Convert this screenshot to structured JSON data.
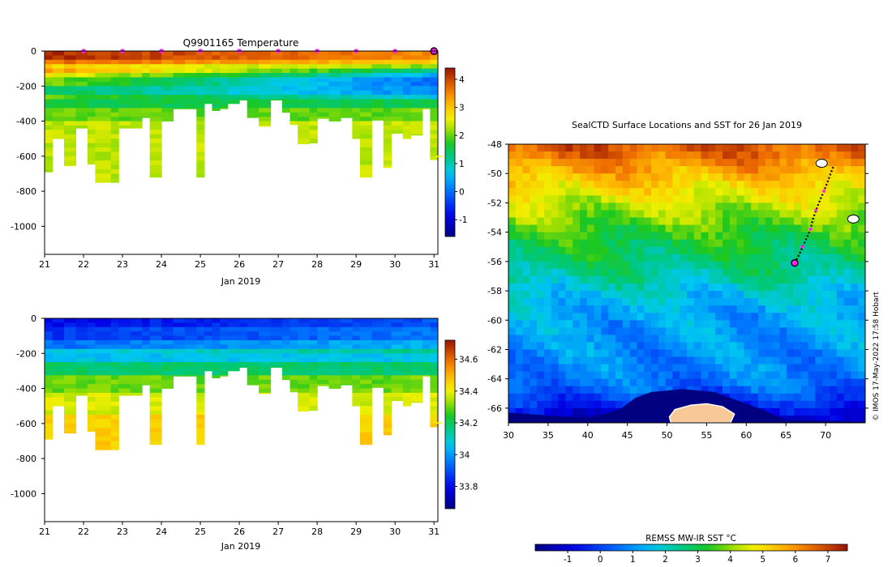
{
  "chart_data": [
    {
      "id": "temperature_section",
      "type": "heatmap",
      "title": "Q9901165  Temperature",
      "xlabel": "Jan 2019",
      "ylabel": "",
      "xlim": [
        21,
        31.1
      ],
      "ylim": [
        -1160,
        0
      ],
      "x_ticks": [
        21,
        22,
        23,
        24,
        25,
        26,
        27,
        28,
        29,
        30,
        31
      ],
      "x_tick_labels": [
        "21",
        "22",
        "23",
        "24",
        "25",
        "26",
        "27",
        "28",
        "29",
        "30",
        "31"
      ],
      "y_ticks": [
        0,
        -200,
        -400,
        -600,
        -800,
        -1000
      ],
      "y_tick_labels": [
        "0",
        "-200",
        "-400",
        "-600",
        "-800",
        "-1000"
      ],
      "colorbar": {
        "min": -1.6,
        "max": 4.4,
        "ticks": [
          -1,
          0,
          1,
          2,
          3,
          4
        ],
        "tick_labels": [
          "-1",
          "0",
          "1",
          "2",
          "3",
          "4"
        ],
        "colormap": "jet",
        "marker_value": 1.25
      },
      "surface_markers_day": [
        22,
        23,
        24,
        25,
        26,
        27,
        28,
        29,
        30
      ],
      "marker_color": "#ff22ff",
      "last_profile_day": 31,
      "profiles": [
        {
          "day": 21.0,
          "max_depth": 690
        },
        {
          "day": 21.2,
          "max_depth": 500
        },
        {
          "day": 21.5,
          "max_depth": 655
        },
        {
          "day": 21.8,
          "max_depth": 440
        },
        {
          "day": 22.1,
          "max_depth": 645
        },
        {
          "day": 22.3,
          "max_depth": 750
        },
        {
          "day": 22.7,
          "max_depth": 750
        },
        {
          "day": 22.9,
          "max_depth": 440
        },
        {
          "day": 23.2,
          "max_depth": 440
        },
        {
          "day": 23.5,
          "max_depth": 380
        },
        {
          "day": 23.7,
          "max_depth": 720
        },
        {
          "day": 24.0,
          "max_depth": 400
        },
        {
          "day": 24.3,
          "max_depth": 330
        },
        {
          "day": 24.6,
          "max_depth": 330
        },
        {
          "day": 24.9,
          "max_depth": 720
        },
        {
          "day": 25.1,
          "max_depth": 300
        },
        {
          "day": 25.3,
          "max_depth": 340
        },
        {
          "day": 25.5,
          "max_depth": 330
        },
        {
          "day": 25.7,
          "max_depth": 300
        },
        {
          "day": 26.0,
          "max_depth": 280
        },
        {
          "day": 26.2,
          "max_depth": 380
        },
        {
          "day": 26.5,
          "max_depth": 430
        },
        {
          "day": 26.8,
          "max_depth": 280
        },
        {
          "day": 27.1,
          "max_depth": 350
        },
        {
          "day": 27.3,
          "max_depth": 420
        },
        {
          "day": 27.5,
          "max_depth": 530
        },
        {
          "day": 27.8,
          "max_depth": 525
        },
        {
          "day": 28.0,
          "max_depth": 385
        },
        {
          "day": 28.3,
          "max_depth": 400
        },
        {
          "day": 28.6,
          "max_depth": 380
        },
        {
          "day": 28.9,
          "max_depth": 500
        },
        {
          "day": 29.1,
          "max_depth": 720
        },
        {
          "day": 29.4,
          "max_depth": 395
        },
        {
          "day": 29.7,
          "max_depth": 665
        },
        {
          "day": 29.9,
          "max_depth": 470
        },
        {
          "day": 30.2,
          "max_depth": 500
        },
        {
          "day": 30.4,
          "max_depth": 480
        },
        {
          "day": 30.7,
          "max_depth": 330
        },
        {
          "day": 30.9,
          "max_depth": 620
        }
      ],
      "layers": [
        {
          "depth_top": 0,
          "depth_bottom": 40,
          "value": 3.9
        },
        {
          "depth_top": 40,
          "depth_bottom": 80,
          "value": 3.4
        },
        {
          "depth_top": 80,
          "depth_bottom": 120,
          "value": 2.6
        },
        {
          "depth_top": 120,
          "depth_bottom": 160,
          "value": 1.9
        },
        {
          "depth_top": 160,
          "depth_bottom": 200,
          "value": 1.35
        },
        {
          "depth_top": 200,
          "depth_bottom": 250,
          "value": 1.05
        },
        {
          "depth_top": 250,
          "depth_bottom": 320,
          "value": 1.55
        },
        {
          "depth_top": 320,
          "depth_bottom": 400,
          "value": 2.0
        },
        {
          "depth_top": 400,
          "depth_bottom": 1200,
          "value": 2.35
        }
      ],
      "surface_trend": [
        0.3,
        -0.5
      ],
      "subsurface_trend": [
        0.4,
        -0.9
      ]
    },
    {
      "id": "salinity_section",
      "type": "heatmap",
      "title": "",
      "xlabel": "Jan 2019",
      "ylabel": "",
      "xlim": [
        21,
        31.1
      ],
      "ylim": [
        -1160,
        0
      ],
      "x_ticks": [
        21,
        22,
        23,
        24,
        25,
        26,
        27,
        28,
        29,
        30,
        31
      ],
      "x_tick_labels": [
        "21",
        "22",
        "23",
        "24",
        "25",
        "26",
        "27",
        "28",
        "29",
        "30",
        "31"
      ],
      "y_ticks": [
        0,
        -200,
        -400,
        -600,
        -800,
        -1000
      ],
      "y_tick_labels": [
        "0",
        "-200",
        "-400",
        "-600",
        "-800",
        "-1000"
      ],
      "colorbar": {
        "min": 33.66,
        "max": 34.72,
        "ticks": [
          33.8,
          34,
          34.2,
          34.4,
          34.6
        ],
        "tick_labels": [
          "33.8",
          "34",
          "34.2",
          "34.4",
          "34.6"
        ],
        "colormap": "jet",
        "marker_value": 34.2
      },
      "layers": [
        {
          "depth_top": 0,
          "depth_bottom": 60,
          "value": 33.8
        },
        {
          "depth_top": 60,
          "depth_bottom": 120,
          "value": 33.86
        },
        {
          "depth_top": 120,
          "depth_bottom": 180,
          "value": 33.94
        },
        {
          "depth_top": 180,
          "depth_bottom": 250,
          "value": 34.06
        },
        {
          "depth_top": 250,
          "depth_bottom": 320,
          "value": 34.18
        },
        {
          "depth_top": 320,
          "depth_bottom": 420,
          "value": 34.3
        },
        {
          "depth_top": 420,
          "depth_bottom": 560,
          "value": 34.38
        },
        {
          "depth_top": 560,
          "depth_bottom": 1200,
          "value": 34.46
        }
      ],
      "surface_trend": [
        0.0,
        0.1
      ]
    },
    {
      "id": "sst_map",
      "type": "heatmap",
      "title": "SealCTD Surface Locations and SST for 26 Jan 2019",
      "xlabel": "",
      "ylabel": "",
      "xlim": [
        30,
        75
      ],
      "ylim": [
        -67,
        -48
      ],
      "x_ticks": [
        30,
        35,
        40,
        45,
        50,
        55,
        60,
        65,
        70
      ],
      "x_tick_labels": [
        "30",
        "35",
        "40",
        "45",
        "50",
        "55",
        "60",
        "65",
        "70"
      ],
      "y_ticks": [
        -48,
        -50,
        -52,
        -54,
        -56,
        -58,
        -60,
        -62,
        -64,
        -66
      ],
      "y_tick_labels": [
        "-48",
        "-50",
        "-52",
        "-54",
        "-56",
        "-58",
        "-60",
        "-62",
        "-64",
        "-66"
      ],
      "colorbar": {
        "title": "REMSS MW-IR SST °C",
        "min": -2,
        "max": 7.6,
        "ticks": [
          -1,
          0,
          1,
          2,
          3,
          4,
          5,
          6,
          7
        ],
        "tick_labels": [
          "-1",
          "0",
          "1",
          "2",
          "3",
          "4",
          "5",
          "6",
          "7"
        ],
        "colormap": "jet"
      },
      "sst_by_latitude": [
        {
          "lat": -48,
          "sst": 6.8
        },
        {
          "lat": -49,
          "sst": 6.3
        },
        {
          "lat": -50,
          "sst": 5.6
        },
        {
          "lat": -51,
          "sst": 5.0
        },
        {
          "lat": -52,
          "sst": 4.4
        },
        {
          "lat": -53,
          "sst": 3.9
        },
        {
          "lat": -54,
          "sst": 3.4
        },
        {
          "lat": -55,
          "sst": 3.0
        },
        {
          "lat": -56,
          "sst": 2.7
        },
        {
          "lat": -57,
          "sst": 2.3
        },
        {
          "lat": -58,
          "sst": 1.8
        },
        {
          "lat": -59,
          "sst": 1.4
        },
        {
          "lat": -60,
          "sst": 1.2
        },
        {
          "lat": -61,
          "sst": 1.1
        },
        {
          "lat": -62,
          "sst": 1.0
        },
        {
          "lat": -63,
          "sst": 0.9
        },
        {
          "lat": -64,
          "sst": 0.7
        },
        {
          "lat": -65,
          "sst": 0.3
        },
        {
          "lat": -66,
          "sst": -0.6
        },
        {
          "lat": -67,
          "sst": -1.5
        }
      ],
      "ice_region": [
        [
          30,
          -66.3
        ],
        [
          35,
          -66.5
        ],
        [
          40,
          -66.7
        ],
        [
          44,
          -66.1
        ],
        [
          46,
          -65.3
        ],
        [
          48,
          -64.9
        ],
        [
          52,
          -64.7
        ],
        [
          56,
          -64.9
        ],
        [
          59,
          -65.5
        ],
        [
          62,
          -66.1
        ],
        [
          65,
          -66.8
        ],
        [
          75,
          -66.9
        ],
        [
          75,
          -67
        ],
        [
          30,
          -67
        ]
      ],
      "land_region": [
        [
          50.5,
          -67
        ],
        [
          50.3,
          -66.6
        ],
        [
          51,
          -66.1
        ],
        [
          53,
          -65.8
        ],
        [
          55,
          -65.7
        ],
        [
          57,
          -65.9
        ],
        [
          58.5,
          -66.4
        ],
        [
          58,
          -67
        ]
      ],
      "track": [
        {
          "lon": 66.1,
          "lat": -56.1
        },
        {
          "lon": 66.6,
          "lat": -55.6
        },
        {
          "lon": 67.1,
          "lat": -55.0
        },
        {
          "lon": 67.6,
          "lat": -54.4
        },
        {
          "lon": 68.1,
          "lat": -53.8
        },
        {
          "lon": 68.4,
          "lat": -53.1
        },
        {
          "lon": 68.8,
          "lat": -52.5
        },
        {
          "lon": 69.3,
          "lat": -51.8
        },
        {
          "lon": 69.8,
          "lat": -51.2
        },
        {
          "lon": 70.3,
          "lat": -50.5
        },
        {
          "lon": 70.7,
          "lat": -49.9
        },
        {
          "lon": 71.0,
          "lat": -49.5
        }
      ],
      "track_daily_points": [
        {
          "lon": 67.1,
          "lat": -55.0
        },
        {
          "lon": 68.1,
          "lat": -53.8
        },
        {
          "lon": 68.8,
          "lat": -52.5
        },
        {
          "lon": 69.8,
          "lat": -51.2
        }
      ],
      "current_position": {
        "lon": 66.1,
        "lat": -56.1
      },
      "islands": [
        {
          "lon": 69.5,
          "lat": -49.3
        },
        {
          "lon": 73.5,
          "lat": -53.1
        }
      ],
      "marker_color": "#ff22ff",
      "track_color": "#000000",
      "ice_color": "#000080",
      "land_color": "#f9c898"
    }
  ],
  "credit": "© IMOS 17-May-2022 17:58 Hobart"
}
